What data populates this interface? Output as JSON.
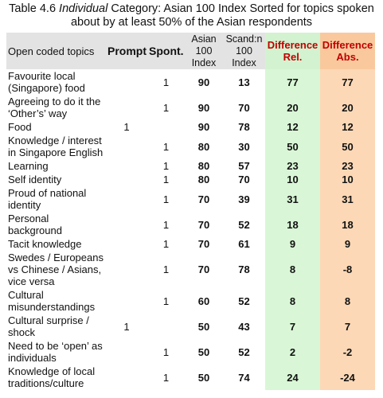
{
  "caption": {
    "label": "Table 4.6",
    "emphasis": "Individual",
    "text": "Category: Asian 100 Index Sorted for topics spoken about by at least 50% of the Asian respondents"
  },
  "table": {
    "headers": [
      "Open coded topics",
      "Prompt",
      "Spont.",
      "Asian 100 Index",
      "Scand:n 100 Index",
      "Difference Rel.",
      "Difference Abs."
    ],
    "rows": [
      [
        "Favourite local (Singapore) food",
        null,
        1,
        90,
        13,
        77,
        77
      ],
      [
        "Agreeing to do it the ‘Other’s’ way",
        null,
        1,
        90,
        70,
        20,
        20
      ],
      [
        "Food",
        1,
        null,
        90,
        78,
        12,
        12
      ],
      [
        "Knowledge / interest in Singapore English",
        null,
        1,
        80,
        30,
        50,
        50
      ],
      [
        "Learning",
        null,
        1,
        80,
        57,
        23,
        23
      ],
      [
        "Self identity",
        null,
        1,
        80,
        70,
        10,
        10
      ],
      [
        "Proud of national identity",
        null,
        1,
        70,
        39,
        31,
        31
      ],
      [
        "Personal background",
        null,
        1,
        70,
        52,
        18,
        18
      ],
      [
        "Tacit knowledge",
        null,
        1,
        70,
        61,
        9,
        9
      ],
      [
        "Swedes / Europeans vs Chinese / Asians, vice versa",
        null,
        1,
        70,
        78,
        8,
        -8
      ],
      [
        "Cultural misunderstandings",
        null,
        1,
        60,
        52,
        8,
        8
      ],
      [
        "Cultural surprise / shock",
        1,
        null,
        50,
        43,
        7,
        7
      ],
      [
        "Need to be ‘open’ as individuals",
        null,
        1,
        50,
        52,
        2,
        -2
      ],
      [
        "Knowledge of local traditions/culture",
        null,
        1,
        50,
        74,
        24,
        -24
      ]
    ]
  }
}
